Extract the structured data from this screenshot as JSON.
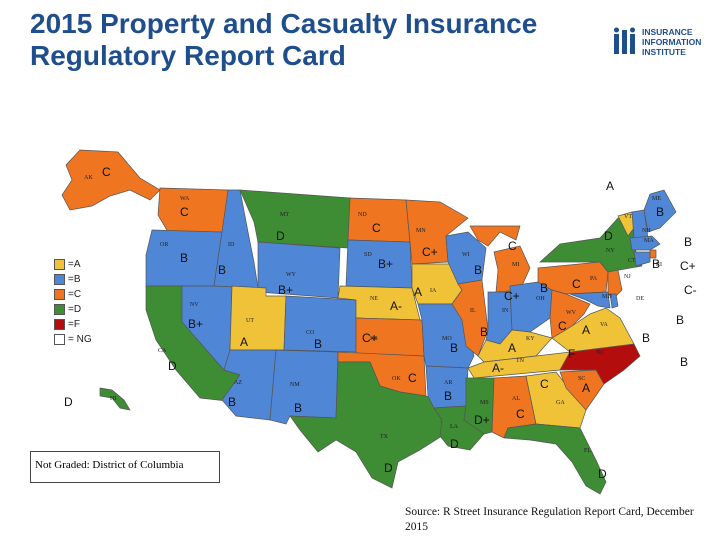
{
  "title": "2015 Property and Casualty Insurance Regulatory Report Card",
  "logo": {
    "line1": "INSURANCE",
    "line2": "INFORMATION",
    "line3": "INSTITUTE"
  },
  "colors": {
    "A": "#f0c238",
    "B": "#4f86d6",
    "C": "#ef7521",
    "D": "#3e8c34",
    "F": "#b30d0d",
    "NG": "#ffffff"
  },
  "legend": [
    {
      "grade": "A",
      "label": "=A"
    },
    {
      "grade": "B",
      "label": "=B"
    },
    {
      "grade": "C",
      "label": "=C"
    },
    {
      "grade": "D",
      "label": "=D"
    },
    {
      "grade": "F",
      "label": "=F"
    },
    {
      "grade": "NG",
      "label": "= NG"
    }
  ],
  "note": "Not Graded: District of Columbia",
  "source": "Source: R Street Insurance Regulation Report Card, December 2015",
  "states": {
    "WA": "C",
    "OR": "B",
    "CA": "D",
    "NV": "B+",
    "ID": "B",
    "MT": "D",
    "WY": "B+",
    "UT": "A",
    "AZ": "B",
    "CO": "B",
    "NM": "B",
    "ND": "C",
    "SD": "B+",
    "NE": "A-",
    "KS": "C+",
    "OK": "C",
    "TX": "D",
    "MN": "C+",
    "IA": "A",
    "MO": "B",
    "AR": "B",
    "LA": "D",
    "WI": "B",
    "IL": "C+",
    "MI": "C",
    "IN": "B",
    "OH": "B",
    "KY": "A-",
    "TN": "A",
    "MS": "D+",
    "AL": "C",
    "GA": "A",
    "FL": "D",
    "SC": "C",
    "NC": "F",
    "VA": "A",
    "WV": "C",
    "PA": "C",
    "NY": "D",
    "VT": "A",
    "NH": "B",
    "ME": "B",
    "MA": "B",
    "RI": "C+",
    "CT": "B",
    "NJ": "C-",
    "DE": "B",
    "MD": "B",
    "AK": "C",
    "HI": "D"
  }
}
